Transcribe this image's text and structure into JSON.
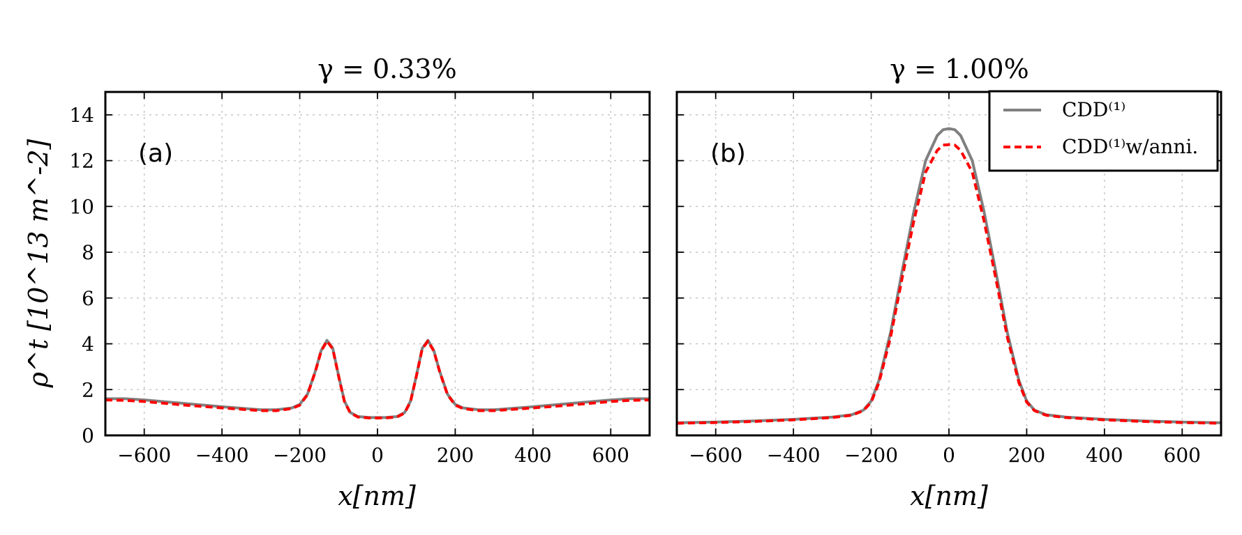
{
  "chart_data": [
    {
      "type": "line",
      "title": "γ = 0.33%",
      "panel_label": "(a)",
      "xlabel": "x[nm]",
      "ylabel": "ρ^t [10^13 m^-2]",
      "xlim": [
        -700,
        700
      ],
      "ylim": [
        0,
        15
      ],
      "xticks": [
        -600,
        -400,
        -200,
        0,
        200,
        400,
        600
      ],
      "xtick_labels": [
        "−600",
        "−400",
        "−200",
        "0",
        "200",
        "400",
        "600"
      ],
      "yticks": [
        0,
        2,
        4,
        6,
        8,
        10,
        12,
        14
      ],
      "ytick_labels": [
        "0",
        "2",
        "4",
        "6",
        "8",
        "10",
        "12",
        "14"
      ],
      "grid": true,
      "series": [
        {
          "name": "CDD(1)",
          "color": "#808080",
          "style": "solid",
          "x": [
            -700,
            -650,
            -600,
            -500,
            -400,
            -300,
            -260,
            -220,
            -200,
            -180,
            -160,
            -145,
            -130,
            -115,
            -100,
            -85,
            -70,
            -50,
            -20,
            0,
            20,
            50,
            70,
            85,
            100,
            115,
            130,
            145,
            160,
            180,
            200,
            220,
            260,
            300,
            400,
            500,
            600,
            650,
            700
          ],
          "values": [
            1.6,
            1.6,
            1.55,
            1.4,
            1.25,
            1.12,
            1.12,
            1.2,
            1.35,
            1.8,
            2.8,
            3.7,
            4.15,
            3.8,
            2.6,
            1.5,
            1.0,
            0.82,
            0.78,
            0.78,
            0.78,
            0.82,
            1.0,
            1.5,
            2.6,
            3.8,
            4.15,
            3.7,
            2.8,
            1.8,
            1.35,
            1.2,
            1.12,
            1.12,
            1.25,
            1.4,
            1.55,
            1.6,
            1.6
          ]
        },
        {
          "name": "CDD(1)w/anni.",
          "color": "#ff0000",
          "style": "dashed",
          "x": [
            -700,
            -650,
            -600,
            -500,
            -400,
            -300,
            -260,
            -220,
            -200,
            -180,
            -160,
            -145,
            -130,
            -115,
            -100,
            -85,
            -70,
            -50,
            -20,
            0,
            20,
            50,
            70,
            85,
            100,
            115,
            130,
            145,
            160,
            180,
            200,
            220,
            260,
            300,
            400,
            500,
            600,
            650,
            700
          ],
          "values": [
            1.55,
            1.53,
            1.48,
            1.33,
            1.2,
            1.08,
            1.08,
            1.17,
            1.32,
            1.78,
            2.78,
            3.68,
            4.12,
            3.78,
            2.58,
            1.48,
            0.98,
            0.8,
            0.76,
            0.76,
            0.76,
            0.8,
            0.98,
            1.48,
            2.58,
            3.78,
            4.12,
            3.68,
            2.78,
            1.78,
            1.32,
            1.17,
            1.08,
            1.08,
            1.2,
            1.33,
            1.48,
            1.53,
            1.55
          ]
        }
      ]
    },
    {
      "type": "line",
      "title": "γ = 1.00%",
      "panel_label": "(b)",
      "xlabel": "x[nm]",
      "ylabel": "",
      "xlim": [
        -700,
        700
      ],
      "ylim": [
        0,
        15
      ],
      "xticks": [
        -600,
        -400,
        -200,
        0,
        200,
        400,
        600
      ],
      "xtick_labels": [
        "−600",
        "−400",
        "−200",
        "0",
        "200",
        "400",
        "600"
      ],
      "yticks": [
        0,
        2,
        4,
        6,
        8,
        10,
        12,
        14
      ],
      "ytick_labels": [],
      "grid": true,
      "legend": {
        "position": "top-right"
      },
      "series": [
        {
          "name": "CDD(1)",
          "color": "#808080",
          "style": "solid",
          "x": [
            -700,
            -600,
            -500,
            -400,
            -300,
            -250,
            -220,
            -200,
            -180,
            -150,
            -120,
            -90,
            -60,
            -30,
            -15,
            0,
            15,
            30,
            60,
            90,
            120,
            150,
            180,
            200,
            220,
            250,
            300,
            400,
            500,
            600,
            700
          ],
          "values": [
            0.55,
            0.58,
            0.63,
            0.7,
            0.8,
            0.9,
            1.1,
            1.5,
            2.4,
            4.5,
            7.2,
            9.8,
            12.0,
            13.1,
            13.35,
            13.4,
            13.35,
            13.1,
            12.0,
            9.8,
            7.2,
            4.5,
            2.4,
            1.5,
            1.1,
            0.9,
            0.8,
            0.7,
            0.63,
            0.58,
            0.55
          ]
        },
        {
          "name": "CDD(1)w/anni.",
          "color": "#ff0000",
          "style": "dashed",
          "x": [
            -700,
            -600,
            -500,
            -400,
            -300,
            -250,
            -220,
            -200,
            -180,
            -150,
            -120,
            -90,
            -60,
            -30,
            -15,
            0,
            15,
            30,
            60,
            90,
            120,
            150,
            180,
            200,
            220,
            250,
            300,
            400,
            500,
            600,
            700
          ],
          "values": [
            0.53,
            0.56,
            0.61,
            0.68,
            0.78,
            0.88,
            1.08,
            1.45,
            2.3,
            4.3,
            6.9,
            9.4,
            11.5,
            12.45,
            12.68,
            12.7,
            12.68,
            12.45,
            11.5,
            9.4,
            6.9,
            4.3,
            2.3,
            1.45,
            1.08,
            0.88,
            0.78,
            0.68,
            0.61,
            0.56,
            0.53
          ]
        }
      ]
    }
  ],
  "legend": {
    "entries": [
      {
        "label": "CDD⁽¹⁾",
        "color": "#808080",
        "style": "solid"
      },
      {
        "label": "CDD⁽¹⁾w/anni.",
        "color": "#ff0000",
        "style": "dashed"
      }
    ]
  }
}
